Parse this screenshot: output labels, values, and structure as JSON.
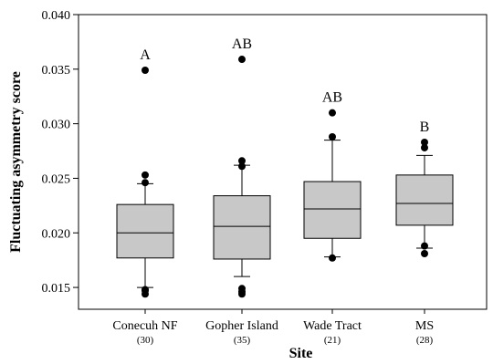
{
  "chart_data": {
    "type": "box",
    "ylabel": "Fluctuating asymmetry score",
    "xlabel": "Site",
    "ylim": [
      0.013,
      0.04
    ],
    "yticks": [
      "0.015",
      "0.020",
      "0.025",
      "0.030",
      "0.035",
      "0.040"
    ],
    "categories": [
      {
        "name": "Conecuh NF",
        "n": "(30)",
        "letter": "A",
        "whisker_low": 0.015,
        "q1": 0.0177,
        "median": 0.02,
        "q3": 0.0226,
        "whisker_high": 0.0245,
        "outliers": [
          0.0144,
          0.0147,
          0.0148,
          0.0246,
          0.0253,
          0.0349
        ]
      },
      {
        "name": "Gopher Island",
        "n": "(35)",
        "letter": "AB",
        "whisker_low": 0.016,
        "q1": 0.0176,
        "median": 0.0206,
        "q3": 0.0234,
        "whisker_high": 0.0262,
        "outliers": [
          0.0144,
          0.0146,
          0.0149,
          0.0261,
          0.0266,
          0.0359
        ]
      },
      {
        "name": "Wade Tract",
        "n": "(21)",
        "letter": "AB",
        "whisker_low": 0.0178,
        "q1": 0.0195,
        "median": 0.0222,
        "q3": 0.0247,
        "whisker_high": 0.0285,
        "outliers": [
          0.0177,
          0.0288,
          0.031
        ]
      },
      {
        "name": "MS",
        "n": "(28)",
        "letter": "B",
        "whisker_low": 0.0186,
        "q1": 0.0207,
        "median": 0.0227,
        "q3": 0.0253,
        "whisker_high": 0.0271,
        "outliers": [
          0.0181,
          0.0188,
          0.0278,
          0.0283
        ]
      }
    ]
  }
}
